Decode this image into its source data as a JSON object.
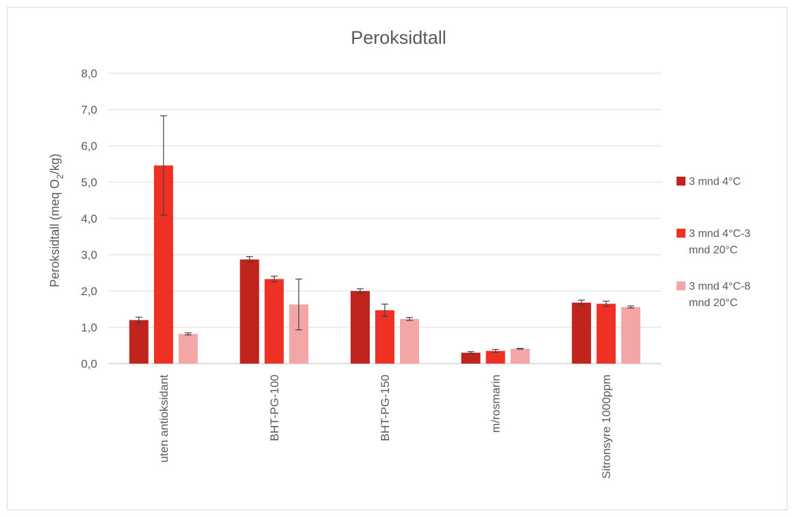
{
  "chart_data": {
    "type": "bar",
    "title": "Peroksidtall",
    "ylabel_prefix": "Peroksidtall (meq O",
    "ylabel_sub": "2",
    "ylabel_suffix": "/kg)",
    "xlabel": "",
    "ylim": [
      0,
      8
    ],
    "yticks": [
      "0,0",
      "1,0",
      "2,0",
      "3,0",
      "4,0",
      "5,0",
      "6,0",
      "7,0",
      "8,0"
    ],
    "grid": true,
    "legend_position": "right",
    "categories": [
      "uten antioksidant",
      "BHT-PG-100",
      "BHT-PG-150",
      "m/rosmarin",
      "Sitronsyre 1000ppm"
    ],
    "series": [
      {
        "name_lines": [
          "3 mnd 4°C"
        ],
        "color": "#c0241c",
        "values": [
          1.2,
          2.87,
          2.0,
          0.3,
          1.68
        ],
        "errors": [
          0.08,
          0.08,
          0.06,
          0.03,
          0.07
        ]
      },
      {
        "name_lines": [
          "3 mnd 4°C-3",
          "mnd 20°C"
        ],
        "color": "#ee3124",
        "values": [
          5.46,
          2.33,
          1.47,
          0.35,
          1.65
        ],
        "errors": [
          1.37,
          0.08,
          0.17,
          0.04,
          0.07
        ]
      },
      {
        "name_lines": [
          "3 mnd 4°C-8",
          "mnd 20°C"
        ],
        "color": "#f4a6a6",
        "values": [
          0.82,
          1.63,
          1.23,
          0.41,
          1.56
        ],
        "errors": [
          0.03,
          0.7,
          0.04,
          0.01,
          0.03
        ]
      }
    ]
  }
}
